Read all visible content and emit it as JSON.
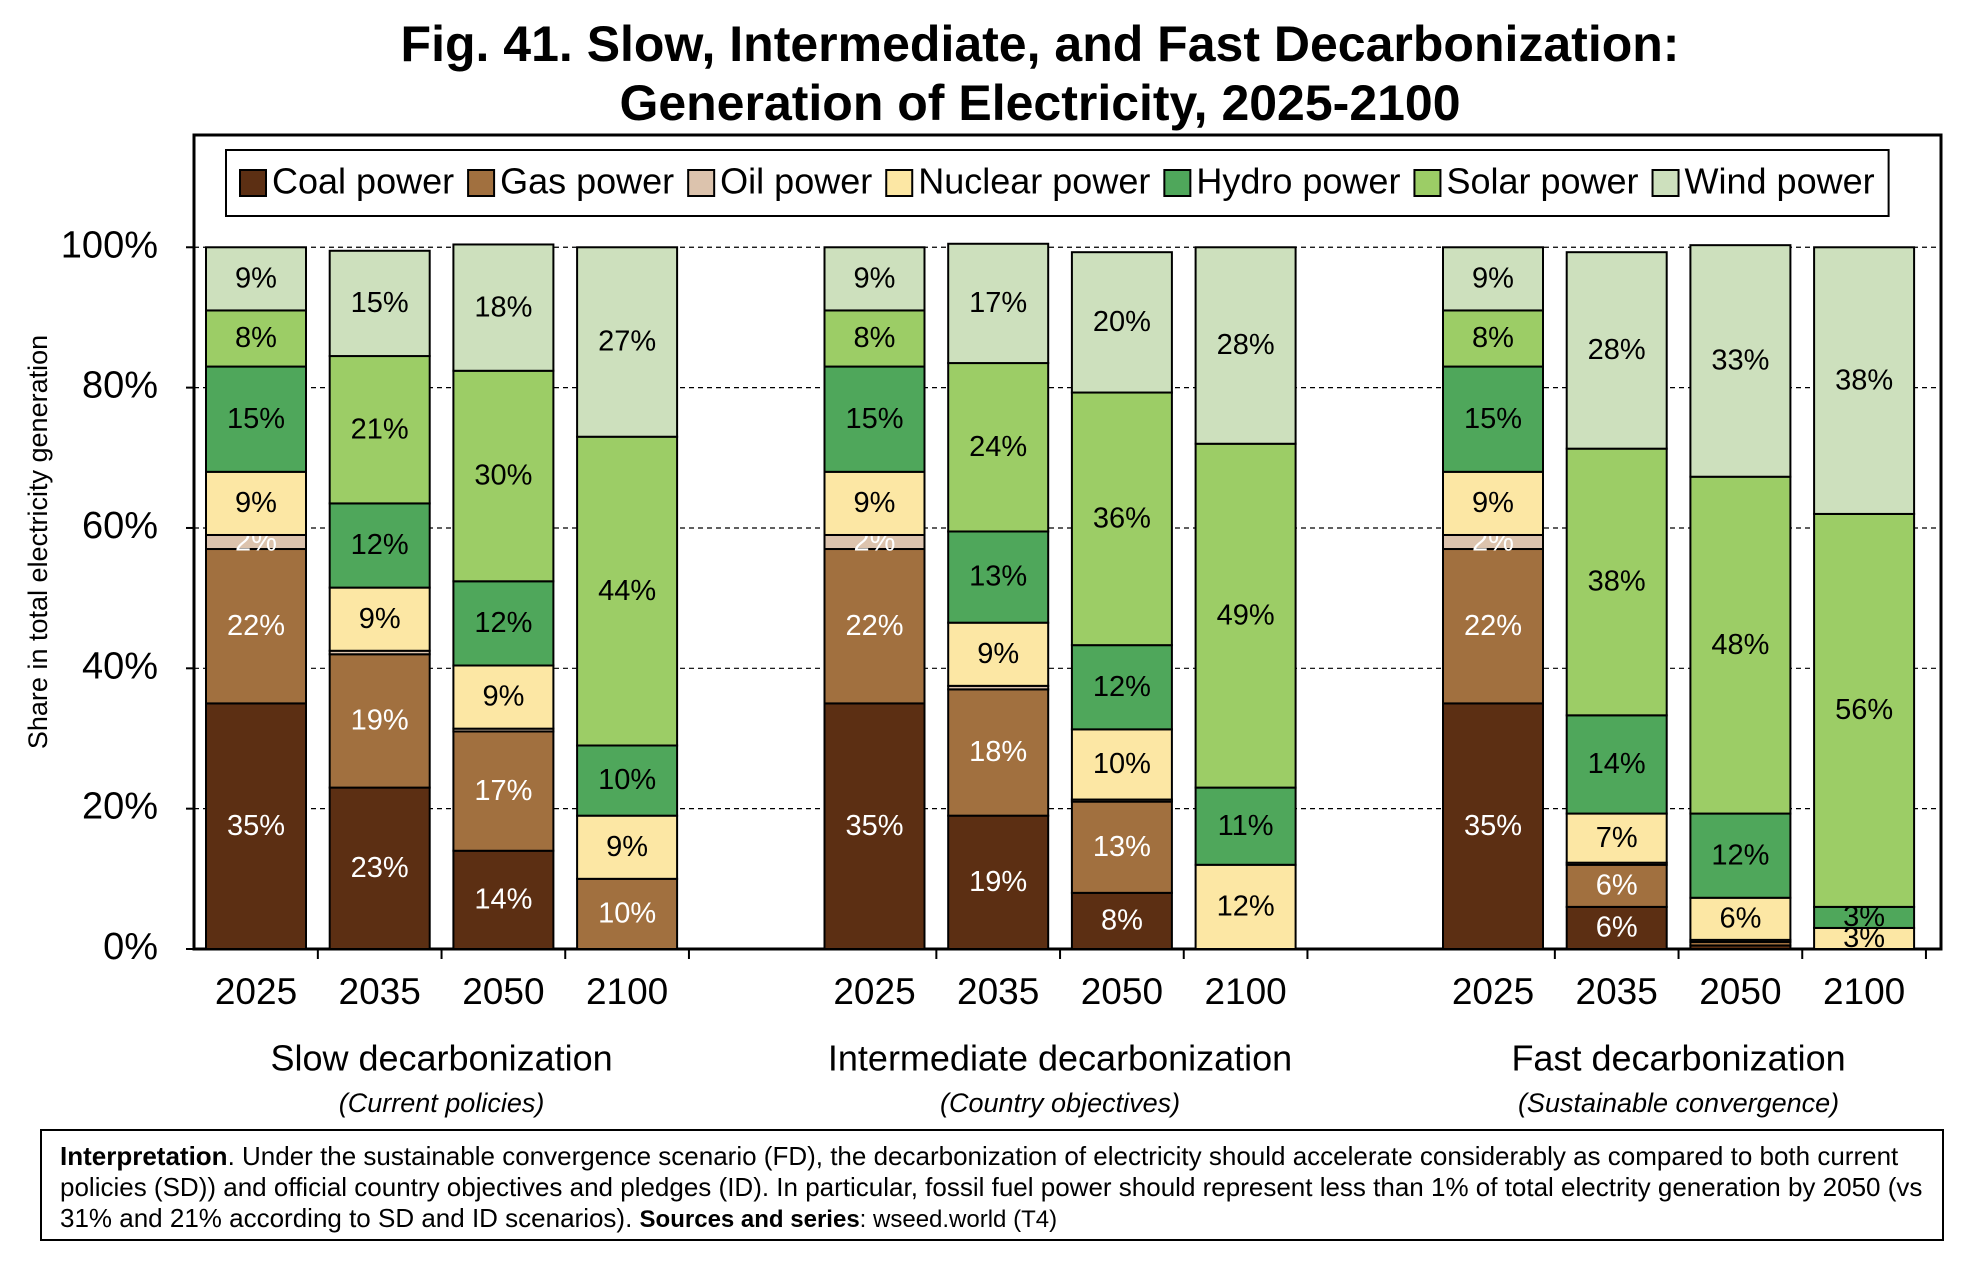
{
  "chart_data": {
    "type": "stacked_bar",
    "title": [
      "Fig. 41. Slow, Intermediate, and Fast Decarbonization:",
      "Generation of Electricity, 2025-2100"
    ],
    "y_label": "Share in total electricity generation",
    "categories": [
      "2025",
      "2035",
      "2050",
      "2100",
      "2025",
      "2035",
      "2050",
      "2100",
      "2025",
      "2035",
      "2050",
      "2100"
    ],
    "groups": [
      {
        "name": "Slow decarbonization",
        "note": "(Current policies)"
      },
      {
        "name": "Intermediate decarbonization",
        "note": "(Country objectives)"
      },
      {
        "name": "Fast decarbonization",
        "note": "(Sustainable convergence)"
      }
    ],
    "ylim": [
      0,
      116
    ],
    "yticks": [
      {
        "value": 0,
        "label": "0%"
      },
      {
        "value": 20,
        "label": "20%"
      },
      {
        "value": 40,
        "label": "40%"
      },
      {
        "value": 60,
        "label": "60%"
      },
      {
        "value": 80,
        "label": "80%"
      },
      {
        "value": 100,
        "label": "100%"
      }
    ],
    "grid": true,
    "legend": "top",
    "series": [
      {
        "name": "Coal power",
        "color": "#5c2f13",
        "label_color": "#ffffff",
        "values": [
          35,
          23,
          14,
          0,
          35,
          19,
          8,
          0,
          35,
          6,
          0.5,
          0
        ],
        "value_labels": [
          "35%",
          "23%",
          "14%",
          null,
          "35%",
          "19%",
          "8%",
          null,
          "35%",
          "6%",
          null,
          null
        ]
      },
      {
        "name": "Gas power",
        "color": "#a1703f",
        "label_color": "#ffffff",
        "values": [
          22,
          19,
          17,
          10,
          22,
          18,
          13,
          0,
          22,
          6,
          0.5,
          0
        ],
        "value_labels": [
          "22%",
          "19%",
          "17%",
          "10%",
          "22%",
          "18%",
          "13%",
          null,
          "22%",
          "6%",
          null,
          null
        ]
      },
      {
        "name": "Oil power",
        "color": "#dcc3ad",
        "label_color": "#ffffff",
        "values": [
          2,
          0.5,
          0.4,
          0,
          2,
          0.5,
          0.3,
          0,
          2,
          0.3,
          0.3,
          0
        ],
        "value_labels": [
          "2%",
          null,
          null,
          null,
          "2%",
          null,
          null,
          null,
          "2%",
          null,
          null,
          null
        ]
      },
      {
        "name": "Nuclear power",
        "color": "#fce7a4",
        "label_color": "#000000",
        "values": [
          9,
          9,
          9,
          9,
          9,
          9,
          10,
          12,
          9,
          7,
          6,
          3
        ],
        "value_labels": [
          "9%",
          "9%",
          "9%",
          "9%",
          "9%",
          "9%",
          "10%",
          "12%",
          "9%",
          "7%",
          "6%",
          "3%"
        ]
      },
      {
        "name": "Hydro power",
        "color": "#4fa75b",
        "label_color": "#000000",
        "values": [
          15,
          12,
          12,
          10,
          15,
          13,
          12,
          11,
          15,
          14,
          12,
          3
        ],
        "value_labels": [
          "15%",
          "12%",
          "12%",
          "10%",
          "15%",
          "13%",
          "12%",
          "11%",
          "15%",
          "14%",
          "12%",
          "3%"
        ]
      },
      {
        "name": "Solar power",
        "color": "#9ccd66",
        "label_color": "#000000",
        "values": [
          8,
          21,
          30,
          44,
          8,
          24,
          36,
          49,
          8,
          38,
          48,
          56
        ],
        "value_labels": [
          "8%",
          "21%",
          "30%",
          "44%",
          "8%",
          "24%",
          "36%",
          "49%",
          "8%",
          "38%",
          "48%",
          "56%"
        ]
      },
      {
        "name": "Wind power",
        "color": "#cde0bd",
        "label_color": "#000000",
        "values": [
          9,
          15,
          18,
          27,
          9,
          17,
          20,
          28,
          9,
          28,
          33,
          38
        ],
        "value_labels": [
          "9%",
          "15%",
          "18%",
          "27%",
          "9%",
          "17%",
          "20%",
          "28%",
          "9%",
          "28%",
          "33%",
          "38%"
        ]
      }
    ]
  },
  "interpretation": {
    "label": "Interpretation",
    "text": ". Under the sustainable convergence scenario (FD), the decarbonization of electricity should accelerate considerably as compared to both current policies (SD)) and official country objectives and pledges (ID). In particular, fossil fuel power should represent less than 1% of total electrity generation by 2050 (vs 31% and 21% according to SD and ID scenarios). ",
    "sources_label": "Sources and series",
    "sources_text": ": wseed.world (T4)"
  }
}
